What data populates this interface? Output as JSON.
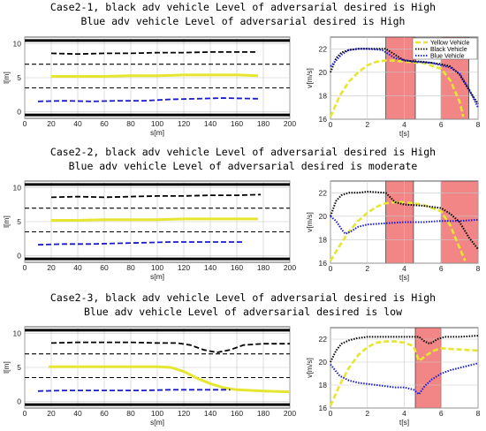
{
  "colors": {
    "yellow": "#e6e630",
    "black": "#000000",
    "blue": "#1a1ad0",
    "shade": "#f07070",
    "grid": "#c8c8c8"
  },
  "panels": [
    {
      "title_line1": "Case2-1, black adv vehicle Level of adversarial desired is High",
      "title_line2": "Blue adv vehicle Level of adversarial desired is High",
      "lane_chart": {
        "type": "line",
        "xlabel": "s[m]",
        "ylabel": "l[m]",
        "xlim": [
          0,
          200
        ],
        "ylim": [
          -1,
          11
        ],
        "xticks": [
          "0",
          "20",
          "40",
          "60",
          "80",
          "100",
          "120",
          "140",
          "160",
          "180",
          "200"
        ],
        "yticks": [
          "0",
          "5",
          "10"
        ],
        "series": [
          {
            "color": "black",
            "dash": "dashed",
            "x": [
              20,
              40,
              60,
              80,
              100,
              120,
              140,
              160,
              176
            ],
            "y": [
              8.6,
              8.5,
              8.6,
              8.6,
              8.7,
              8.7,
              8.8,
              8.8,
              8.8
            ]
          },
          {
            "color": "yellow",
            "dash": "solid",
            "x": [
              20,
              40,
              60,
              80,
              100,
              120,
              140,
              160,
              176
            ],
            "y": [
              5.2,
              5.2,
              5.2,
              5.3,
              5.3,
              5.4,
              5.4,
              5.4,
              5.3
            ]
          },
          {
            "color": "blue",
            "dash": "dashed",
            "x": [
              10,
              30,
              50,
              70,
              90,
              110,
              130,
              150,
              176
            ],
            "y": [
              1.5,
              1.6,
              1.5,
              1.6,
              1.6,
              1.8,
              1.9,
              2.0,
              1.9
            ]
          }
        ]
      },
      "speed_chart": {
        "type": "line",
        "xlabel": "t[s]",
        "ylabel": "v[m/s]",
        "xlim": [
          0,
          8
        ],
        "ylim": [
          16,
          23
        ],
        "xticks": [
          "0",
          "2",
          "4",
          "6",
          "8"
        ],
        "yticks": [
          "16",
          "18",
          "20",
          "22"
        ],
        "legend": [
          "Yellow Vehicle",
          "Black Vehicle",
          "Blue Vehicle"
        ],
        "legend_position": "top-right",
        "shaded": [
          [
            3.0,
            4.6
          ],
          [
            6.0,
            7.5
          ]
        ],
        "series": [
          {
            "name": "Yellow Vehicle",
            "color": "yellow",
            "dash": "dashed",
            "x": [
              0,
              0.5,
              1,
              1.5,
              2,
              2.5,
              3,
              3.5,
              4,
              5,
              6,
              6.5,
              7,
              7.2
            ],
            "y": [
              16.2,
              18.0,
              19.2,
              20.0,
              20.6,
              20.9,
              21.0,
              21.0,
              20.9,
              20.8,
              20.3,
              19.3,
              17.5,
              16.2
            ]
          },
          {
            "name": "Black Vehicle",
            "color": "black",
            "dash": "dotted",
            "x": [
              0,
              0.3,
              0.6,
              1,
              1.5,
              2,
              3,
              4,
              5,
              6,
              6.5,
              7,
              7.5,
              8
            ],
            "y": [
              20.0,
              21.2,
              21.7,
              21.9,
              22.0,
              22.0,
              22.0,
              21.0,
              20.9,
              20.7,
              20.5,
              19.8,
              18.5,
              17.3
            ]
          },
          {
            "name": "Blue Vehicle",
            "color": "blue",
            "dash": "dotted",
            "x": [
              0,
              0.3,
              0.6,
              1,
              1.5,
              2,
              2.8,
              3.5,
              4.5,
              5.5,
              6,
              6.5,
              7,
              7.5,
              8
            ],
            "y": [
              20.5,
              21.0,
              21.5,
              21.9,
              22.0,
              22.0,
              21.9,
              21.2,
              20.9,
              20.8,
              20.6,
              20.4,
              19.9,
              18.6,
              17.0
            ]
          }
        ]
      }
    },
    {
      "title_line1": "Case2-2, black adv vehicle Level of adversarial desired is High",
      "title_line2": "Blue adv vehicle Level of adversarial desired is moderate",
      "lane_chart": {
        "type": "line",
        "xlabel": "s[m]",
        "ylabel": "l[m]",
        "xlim": [
          0,
          200
        ],
        "ylim": [
          -1,
          11
        ],
        "xticks": [
          "0",
          "20",
          "40",
          "60",
          "80",
          "100",
          "120",
          "140",
          "160",
          "180",
          "200"
        ],
        "yticks": [
          "0",
          "5",
          "10"
        ],
        "series": [
          {
            "color": "black",
            "dash": "dashed",
            "x": [
              20,
              40,
              60,
              80,
              100,
              120,
              140,
              160,
              178
            ],
            "y": [
              8.6,
              8.7,
              8.6,
              8.7,
              8.8,
              8.8,
              8.9,
              8.9,
              9.0
            ]
          },
          {
            "color": "yellow",
            "dash": "solid",
            "x": [
              20,
              40,
              60,
              80,
              100,
              120,
              140,
              160,
              176
            ],
            "y": [
              5.2,
              5.2,
              5.3,
              5.3,
              5.3,
              5.4,
              5.4,
              5.4,
              5.4
            ]
          },
          {
            "color": "blue",
            "dash": "dashed",
            "x": [
              10,
              30,
              50,
              70,
              90,
              110,
              130,
              150,
              165
            ],
            "y": [
              1.6,
              1.7,
              1.7,
              1.8,
              1.9,
              2.0,
              2.0,
              2.0,
              2.0
            ]
          }
        ]
      },
      "speed_chart": {
        "type": "line",
        "xlabel": "t[s]",
        "ylabel": "v[m/s]",
        "xlim": [
          0,
          8
        ],
        "ylim": [
          16,
          23
        ],
        "xticks": [
          "0",
          "2",
          "4",
          "6",
          "8"
        ],
        "yticks": [
          "16",
          "18",
          "20",
          "22"
        ],
        "shaded": [
          [
            3.0,
            4.5
          ],
          [
            6.0,
            8.0
          ]
        ],
        "series": [
          {
            "color": "yellow",
            "dash": "dashed",
            "x": [
              0,
              0.5,
              1,
              1.5,
              2,
              2.5,
              3,
              3.5,
              4,
              5,
              6,
              6.5,
              7,
              7.3
            ],
            "y": [
              16.2,
              17.5,
              18.7,
              19.6,
              20.3,
              20.8,
              21.1,
              21.2,
              21.2,
              21.0,
              20.4,
              19.2,
              17.3,
              16.2
            ]
          },
          {
            "color": "black",
            "dash": "dotted",
            "x": [
              0,
              0.3,
              0.6,
              1,
              1.5,
              2,
              3,
              3.5,
              4,
              5,
              6,
              6.5,
              7,
              7.5,
              8
            ],
            "y": [
              20.0,
              21.3,
              21.8,
              22.0,
              22.0,
              22.1,
              22.0,
              21.2,
              21.0,
              20.9,
              20.7,
              20.2,
              19.5,
              18.2,
              17.2
            ]
          },
          {
            "color": "blue",
            "dash": "dotted",
            "x": [
              0,
              0.3,
              0.6,
              0.8,
              1.1,
              1.5,
              2,
              3,
              4,
              5,
              6,
              7,
              8
            ],
            "y": [
              20.0,
              19.6,
              18.9,
              18.5,
              18.7,
              19.1,
              19.3,
              19.4,
              19.5,
              19.5,
              19.6,
              19.6,
              19.7
            ]
          }
        ]
      }
    },
    {
      "title_line1": "Case2-3, black adv vehicle Level of adversarial desired is High",
      "title_line2": "Blue adv vehicle Level of adversarial desired is low",
      "lane_chart": {
        "type": "line",
        "xlabel": "s[m]",
        "ylabel": "l[m]",
        "xlim": [
          0,
          200
        ],
        "ylim": [
          -1,
          11
        ],
        "xticks": [
          "0",
          "20",
          "40",
          "60",
          "80",
          "100",
          "120",
          "140",
          "160",
          "180",
          "200"
        ],
        "yticks": [
          "0",
          "5",
          "10"
        ],
        "series": [
          {
            "color": "black",
            "dash": "dashed",
            "x": [
              20,
              40,
              60,
              80,
              100,
              115,
              125,
              135,
              145,
              155,
              165,
              180,
              200
            ],
            "y": [
              8.6,
              8.7,
              8.7,
              8.7,
              8.6,
              8.6,
              8.3,
              7.6,
              7.2,
              7.6,
              8.3,
              8.5,
              8.5
            ]
          },
          {
            "color": "yellow",
            "dash": "solid",
            "x": [
              18,
              40,
              60,
              80,
              100,
              110,
              120,
              130,
              140,
              150,
              160,
              180,
              200
            ],
            "y": [
              5.1,
              5.1,
              5.1,
              5.1,
              5.1,
              5.0,
              4.4,
              3.4,
              2.6,
              2.0,
              1.7,
              1.5,
              1.4
            ]
          },
          {
            "color": "blue",
            "dash": "dashed",
            "x": [
              10,
              30,
              50,
              70,
              90,
              110,
              130,
              155
            ],
            "y": [
              1.5,
              1.6,
              1.6,
              1.6,
              1.6,
              1.7,
              1.7,
              1.7
            ]
          }
        ]
      },
      "speed_chart": {
        "type": "line",
        "xlabel": "t[s]",
        "ylabel": "v[m/s]",
        "xlim": [
          0,
          8
        ],
        "ylim": [
          16,
          23
        ],
        "xticks": [
          "0",
          "2",
          "4",
          "6",
          "8"
        ],
        "yticks": [
          "16",
          "18",
          "20",
          "22"
        ],
        "shaded": [
          [
            4.6,
            6.0
          ]
        ],
        "series": [
          {
            "color": "yellow",
            "dash": "dashed",
            "x": [
              0,
              0.5,
              1,
              1.5,
              2,
              2.5,
              3,
              3.5,
              4,
              4.5,
              4.8,
              5.2,
              5.6,
              6,
              7,
              8
            ],
            "y": [
              16.2,
              18.0,
              19.5,
              20.6,
              21.3,
              21.7,
              21.8,
              21.8,
              21.7,
              21.4,
              20.1,
              20.6,
              21.0,
              21.2,
              21.1,
              21.0
            ]
          },
          {
            "color": "black",
            "dash": "dotted",
            "x": [
              0,
              0.3,
              0.6,
              1,
              1.5,
              2,
              3,
              4,
              4.8,
              5.1,
              5.4,
              5.8,
              6.2,
              7,
              8
            ],
            "y": [
              20.0,
              21.0,
              21.6,
              21.9,
              22.1,
              22.2,
              22.2,
              22.2,
              22.2,
              21.8,
              21.6,
              22.0,
              22.2,
              22.2,
              22.3
            ]
          },
          {
            "color": "blue",
            "dash": "dotted",
            "x": [
              0,
              0.5,
              1,
              1.5,
              2,
              2.5,
              3,
              3.5,
              4,
              4.5,
              4.8,
              5.1,
              5.5,
              6,
              6.5,
              7,
              7.5,
              8
            ],
            "y": [
              19.8,
              18.8,
              18.4,
              18.2,
              18.1,
              18.0,
              17.9,
              17.8,
              17.8,
              17.6,
              17.2,
              17.9,
              18.5,
              19.0,
              19.3,
              19.5,
              19.7,
              19.9
            ]
          }
        ]
      }
    }
  ]
}
